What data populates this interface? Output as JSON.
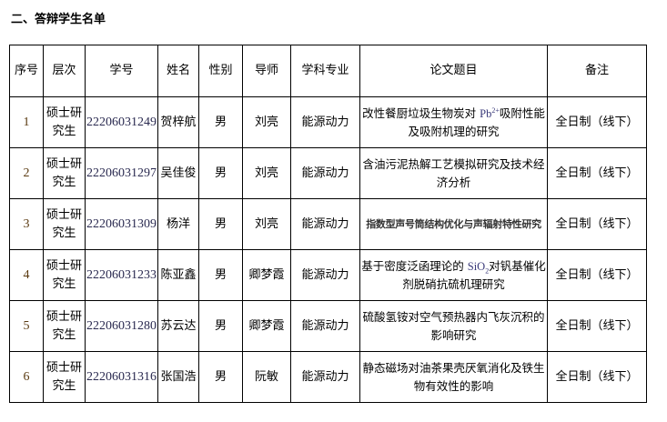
{
  "heading": "二、答辩学生名单",
  "headers": [
    "序号",
    "层次",
    "学号",
    "姓名",
    "性别",
    "导师",
    "学科专业",
    "论文题目",
    "备注"
  ],
  "rows": [
    {
      "no": "1",
      "level": "硕士研究生",
      "id": "22206031249",
      "name": "贺梓航",
      "gender": "男",
      "advisor": "刘亮",
      "major": "能源动力",
      "title_pre": "改性餐厨垃圾生物炭对 ",
      "chem": "Pb",
      "sup": "2+",
      "sub": "",
      "title_post": "吸附性能及吸附机理的研究",
      "note": "全日制（线下）"
    },
    {
      "no": "2",
      "level": "硕士研究生",
      "id": "22206031297",
      "name": "吴佳俊",
      "gender": "男",
      "advisor": "刘亮",
      "major": "能源动力",
      "title_pre": "含油污泥热解工艺模拟研究及技术经济分析",
      "chem": "",
      "sup": "",
      "sub": "",
      "title_post": "",
      "note": "全日制（线下）"
    },
    {
      "no": "3",
      "level": "硕士研究生",
      "id": "22206031309",
      "name": "杨洋",
      "gender": "男",
      "advisor": "刘亮",
      "major": "能源动力",
      "title_pre": "指数型声号筒结构优化与声辐射特性研究",
      "chem": "",
      "sup": "",
      "sub": "",
      "title_post": "",
      "note": "全日制（线下）"
    },
    {
      "no": "4",
      "level": "硕士研究生",
      "id": "22206031233",
      "name": "陈亚鑫",
      "gender": "男",
      "advisor": "卿梦霞",
      "major": "能源动力",
      "title_pre": "基于密度泛函理论的 ",
      "chem": "SiO",
      "sup": "",
      "sub": "2",
      "title_post": "对钒基催化剂脱硝抗硫机理研究",
      "note": "全日制（线下）"
    },
    {
      "no": "5",
      "level": "硕士研究生",
      "id": "22206031280",
      "name": "苏云达",
      "gender": "男",
      "advisor": "卿梦霞",
      "major": "能源动力",
      "title_pre": "硫酸氢铵对空气预热器内飞灰沉积的影响研究",
      "chem": "",
      "sup": "",
      "sub": "",
      "title_post": "",
      "note": "全日制（线下）"
    },
    {
      "no": "6",
      "level": "硕士研究生",
      "id": "22206031316",
      "name": "张国浩",
      "gender": "男",
      "advisor": "阮敏",
      "major": "能源动力",
      "title_pre": "静态磁场对油茶果壳厌氧消化及铁生物有效性的影响",
      "chem": "",
      "sup": "",
      "sub": "",
      "title_post": "",
      "note": "全日制（线下）"
    }
  ]
}
